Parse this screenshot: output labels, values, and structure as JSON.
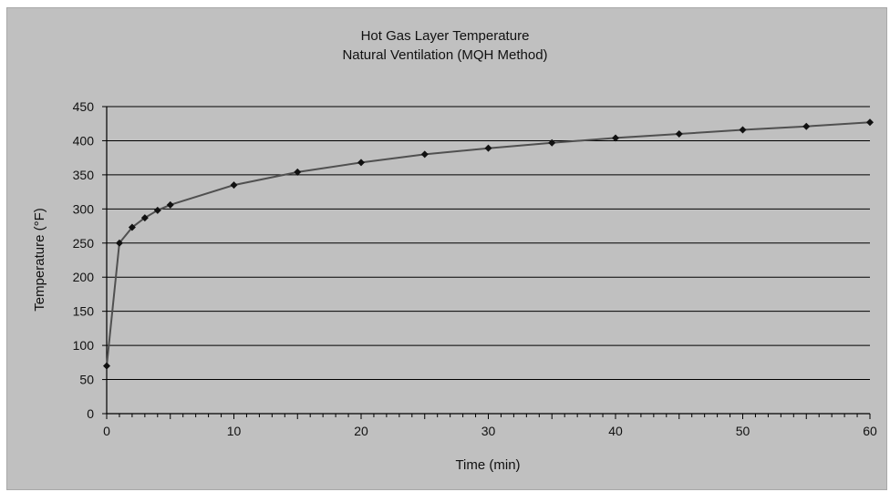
{
  "chart_data": {
    "type": "line",
    "title": "Hot Gas Layer Temperature",
    "subtitle": "Natural Ventilation (MQH Method)",
    "xlabel": "Time (min)",
    "ylabel": "Temperature (°F)",
    "xlim": [
      0,
      60
    ],
    "ylim": [
      0,
      450
    ],
    "xticks": [
      0,
      10,
      20,
      30,
      40,
      50,
      60
    ],
    "yticks": [
      0,
      50,
      100,
      150,
      200,
      250,
      300,
      350,
      400,
      450
    ],
    "grid": "horizontal",
    "legend": "none",
    "colors": {
      "panel": "#c0c0c0",
      "line": "#505050",
      "marker": "#111111",
      "grid": "#000000"
    },
    "series": [
      {
        "x": [
          0,
          1,
          2,
          3,
          4,
          5,
          10,
          15,
          20,
          25,
          30,
          35,
          40,
          45,
          50,
          55,
          60
        ],
        "y": [
          70,
          250,
          273,
          287,
          298,
          306,
          335,
          354,
          368,
          380,
          389,
          397,
          404,
          410,
          416,
          421,
          427
        ]
      }
    ]
  }
}
